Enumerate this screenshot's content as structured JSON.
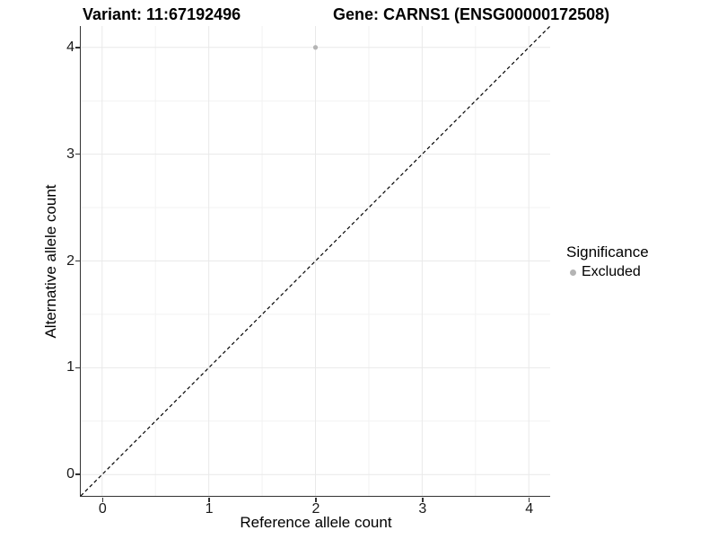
{
  "chart_data": {
    "type": "scatter",
    "title_left": "Variant: 11:67192496",
    "title_right": "Gene: CARNS1 (ENSG00000172508)",
    "xlabel": "Reference allele count",
    "ylabel": "Alternative allele count",
    "xlim": [
      -0.2,
      4.2
    ],
    "ylim": [
      -0.2,
      4.2
    ],
    "x_ticks": [
      0,
      1,
      2,
      3,
      4
    ],
    "y_ticks": [
      0,
      1,
      2,
      3,
      4
    ],
    "x_minor_ticks": [
      0.5,
      1.5,
      2.5,
      3.5
    ],
    "y_minor_ticks": [
      0.5,
      1.5,
      2.5,
      3.5
    ],
    "grid": true,
    "points": [
      {
        "x": 2,
        "y": 4,
        "series": "Excluded"
      }
    ],
    "reference_line": {
      "slope": 1,
      "intercept": 0,
      "linetype": "dashed",
      "color": "#000000"
    },
    "legend": {
      "title": "Significance",
      "position": "right",
      "items": [
        {
          "label": "Excluded",
          "color": "#b4b4b4"
        }
      ]
    },
    "colors": {
      "background": "#ffffff",
      "grid_major": "#e9e9e9",
      "grid_minor": "#f2f2f2",
      "axis_line": "#333333",
      "point": "#b4b4b4"
    }
  }
}
